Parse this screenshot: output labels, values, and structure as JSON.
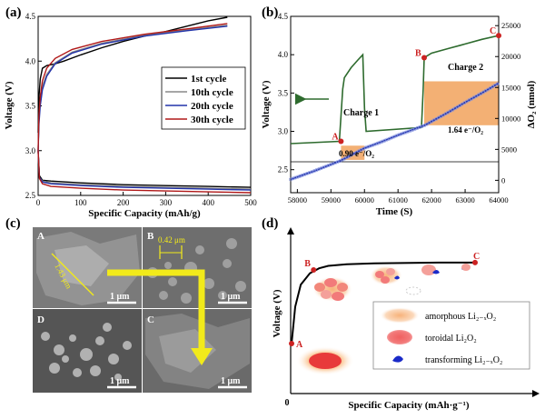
{
  "panels": {
    "a": {
      "label": "(a)"
    },
    "b": {
      "label": "(b)"
    },
    "c": {
      "label": "(c)"
    },
    "d": {
      "label": "(d)"
    }
  },
  "chart_data": [
    {
      "panel": "a",
      "type": "line",
      "title": "",
      "xlabel": "Specific Capacity (mAh/g)",
      "ylabel": "Voltage (V)",
      "xlim": [
        0,
        500
      ],
      "ylim": [
        2.5,
        4.5
      ],
      "xticks": [
        0,
        100,
        200,
        300,
        400,
        500
      ],
      "yticks": [
        2.5,
        3.0,
        3.5,
        4.0,
        4.5
      ],
      "tick_labels_x": [
        "0",
        "100",
        "200",
        "300",
        "400",
        "500"
      ],
      "tick_labels_y": [
        "2.5",
        "3.0",
        "3.5",
        "4.0",
        "4.5"
      ],
      "legend_position": "right",
      "series": [
        {
          "name": "1st cycle",
          "color": "#000000",
          "kind": "charge",
          "x": [
            0,
            2,
            5,
            10,
            20,
            40,
            60,
            100,
            150,
            200,
            250,
            300,
            350,
            400,
            445
          ],
          "y": [
            3.2,
            3.6,
            3.8,
            3.92,
            3.95,
            3.97,
            4.0,
            4.07,
            4.15,
            4.22,
            4.28,
            4.33,
            4.39,
            4.45,
            4.49
          ]
        },
        {
          "name": "1st cycle",
          "color": "#000000",
          "kind": "discharge",
          "x": [
            0,
            3,
            10,
            30,
            100,
            200,
            300,
            400,
            500
          ],
          "y": [
            3.0,
            2.72,
            2.67,
            2.66,
            2.64,
            2.62,
            2.61,
            2.6,
            2.59
          ]
        },
        {
          "name": "10th cycle",
          "color": "#888888",
          "kind": "charge",
          "x": [
            0,
            2,
            5,
            10,
            20,
            40,
            80,
            150,
            250,
            350,
            445
          ],
          "y": [
            3.0,
            3.35,
            3.55,
            3.72,
            3.85,
            3.98,
            4.1,
            4.2,
            4.29,
            4.35,
            4.4
          ]
        },
        {
          "name": "10th cycle",
          "color": "#888888",
          "kind": "discharge",
          "x": [
            0,
            3,
            10,
            30,
            100,
            200,
            300,
            400,
            500
          ],
          "y": [
            3.0,
            2.7,
            2.66,
            2.64,
            2.62,
            2.6,
            2.59,
            2.58,
            2.57
          ]
        },
        {
          "name": "20th cycle",
          "color": "#2233aa",
          "kind": "charge",
          "x": [
            0,
            2,
            5,
            10,
            20,
            40,
            80,
            150,
            250,
            350,
            445
          ],
          "y": [
            3.0,
            3.3,
            3.5,
            3.68,
            3.83,
            3.97,
            4.09,
            4.19,
            4.28,
            4.34,
            4.39
          ]
        },
        {
          "name": "20th cycle",
          "color": "#2233aa",
          "kind": "discharge",
          "x": [
            0,
            3,
            10,
            30,
            100,
            200,
            300,
            400,
            500
          ],
          "y": [
            3.0,
            2.7,
            2.65,
            2.63,
            2.61,
            2.59,
            2.58,
            2.57,
            2.56
          ]
        },
        {
          "name": "30th cycle",
          "color": "#b01818",
          "kind": "charge",
          "x": [
            0,
            2,
            5,
            10,
            20,
            40,
            80,
            150,
            250,
            350,
            445
          ],
          "y": [
            3.0,
            3.4,
            3.6,
            3.78,
            3.92,
            4.03,
            4.13,
            4.22,
            4.3,
            4.36,
            4.42
          ]
        },
        {
          "name": "30th cycle",
          "color": "#b01818",
          "kind": "discharge",
          "x": [
            0,
            3,
            10,
            30,
            100,
            200,
            300,
            400,
            500
          ],
          "y": [
            3.0,
            2.69,
            2.63,
            2.6,
            2.58,
            2.56,
            2.55,
            2.54,
            2.53
          ]
        }
      ]
    },
    {
      "panel": "b",
      "type": "line",
      "title": "",
      "xlabel": "Time (S)",
      "ylabel": "Voltage (V)",
      "y2label": "ΔO₂ (nmol)",
      "xlim": [
        57800,
        64000
      ],
      "ylim": [
        2.2,
        4.5
      ],
      "y2lim": [
        -2000,
        26500
      ],
      "xticks": [
        58000,
        59000,
        60000,
        61000,
        62000,
        63000,
        64000
      ],
      "yticks": [
        2.5,
        3.0,
        3.5,
        4.0,
        4.5
      ],
      "y2ticks": [
        0,
        5000,
        10000,
        15000,
        20000,
        25000
      ],
      "tick_labels_x": [
        "58000",
        "59000",
        "60000",
        "61000",
        "62000",
        "63000",
        "64000"
      ],
      "tick_labels_y": [
        "2.5",
        "3.0",
        "3.5",
        "4.0",
        "4.5"
      ],
      "tick_labels_y2": [
        "0",
        "5000",
        "10000",
        "15000",
        "20000",
        "25000"
      ],
      "series": [
        {
          "name": "",
          "axis": "left",
          "color": "#2e6b2e",
          "x": [
            57800,
            59250,
            59300,
            59350,
            59400,
            59600,
            59800,
            59950,
            60000,
            60050,
            61700,
            61750,
            61780,
            62000,
            62500,
            63000,
            63500,
            64000
          ],
          "y": [
            2.84,
            2.87,
            3.2,
            3.55,
            3.7,
            3.83,
            3.93,
            4.0,
            3.3,
            3.0,
            3.05,
            3.55,
            3.96,
            4.02,
            4.08,
            4.14,
            4.2,
            4.25
          ]
        },
        {
          "name": "",
          "axis": "right",
          "color": "#2a3ab0",
          "x": [
            57800,
            58500,
            59300,
            60000,
            60500,
            61000,
            61800,
            62500,
            63000,
            63500,
            64000
          ],
          "y": [
            150,
            1500,
            3200,
            5200,
            6200,
            7300,
            8900,
            11000,
            12600,
            14100,
            15700
          ]
        }
      ],
      "markers": [
        {
          "label": "A",
          "x": 59300,
          "y": 2.87
        },
        {
          "label": "B",
          "x": 61780,
          "y": 3.96
        },
        {
          "label": "C",
          "x": 64000,
          "y": 4.25
        }
      ],
      "shaded_regions": [
        {
          "x": [
            59300,
            60000
          ],
          "y2": [
            3300,
            5600
          ],
          "label": "0.90 e⁻/O₂"
        },
        {
          "x": [
            61780,
            64000
          ],
          "y2": [
            8900,
            16000
          ],
          "label": "1.64 e⁻/O₂"
        }
      ],
      "annotations": [
        "Charge 1",
        "Charge 2"
      ]
    },
    {
      "panel": "d",
      "type": "line",
      "title": "",
      "xlabel": "Specific Capacity (mAh·g⁻¹)",
      "ylabel": "Voltage (V)",
      "origin_label": "0",
      "series": [
        {
          "name": "",
          "color": "#000000",
          "x": [
            0,
            2,
            5,
            10,
            15,
            20,
            30,
            45,
            60,
            80,
            100
          ],
          "y": [
            0,
            0.45,
            0.72,
            0.86,
            0.92,
            0.95,
            0.97,
            0.98,
            0.985,
            0.99,
            0.99
          ]
        }
      ],
      "markers": [
        {
          "label": "A",
          "x": 0,
          "y": 0
        },
        {
          "label": "B",
          "x": 12,
          "y": 0.9
        },
        {
          "label": "C",
          "x": 100,
          "y": 0.99
        }
      ],
      "legend": [
        {
          "symbol": "amorphous",
          "text": "amorphous Li₂₋ₓO₂"
        },
        {
          "symbol": "toroidal",
          "text": "toroidal Li₂O₂"
        },
        {
          "symbol": "transforming",
          "text": "transforming Li₂₋ₓO₂"
        }
      ]
    }
  ],
  "panel_c": {
    "subpanels": [
      "A",
      "B",
      "C",
      "D"
    ],
    "scale_label": "1 μm",
    "measurements": [
      "1.43 μm",
      "0.42 μm"
    ]
  },
  "panel_a_legend": [
    "1st cycle",
    "10th cycle",
    "20th cycle",
    "30th cycle"
  ],
  "colors": {
    "accent_red": "#cc2222",
    "shade_orange": "#f2a765",
    "arrow_yellow": "#f2ea1a",
    "green": "#2e6b2e",
    "blue": "#2a3ab0"
  }
}
